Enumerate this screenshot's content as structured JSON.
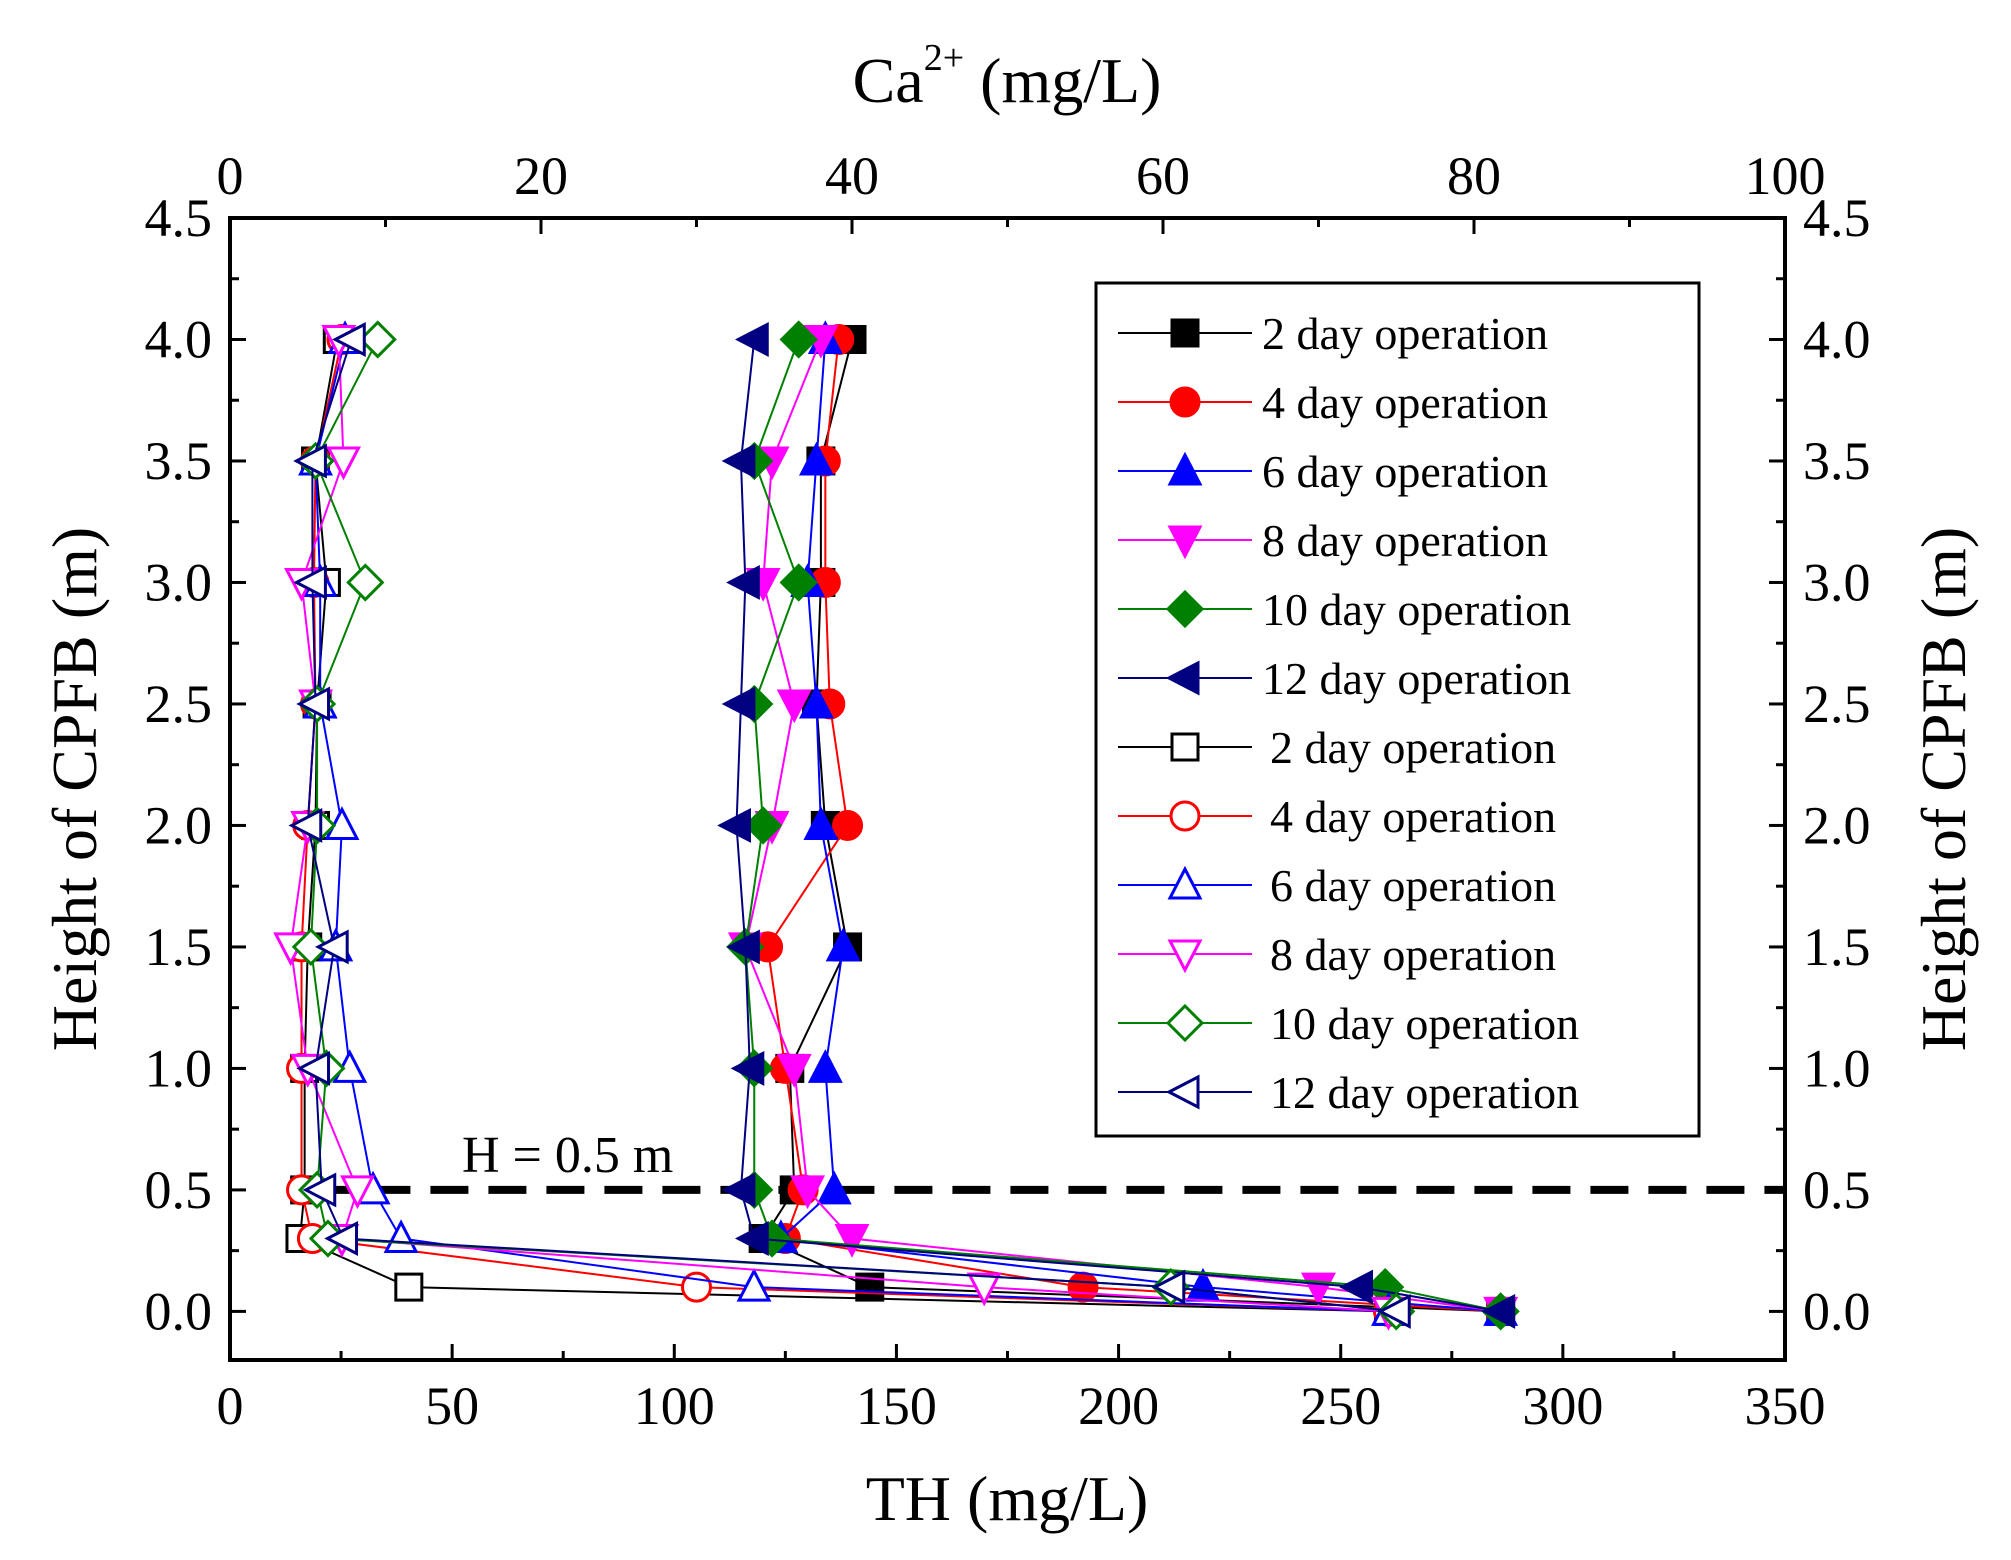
{
  "chart_data": {
    "type": "line",
    "title": "",
    "xlabel": "TH (mg/L)",
    "x2label_base": "Ca",
    "x2label_sup": "2+",
    "x2label_unit": "(mg/L)",
    "ylabel": "Height of CPFB (m)",
    "y2label": "Height of CPFB (m)",
    "xlim": [
      0,
      350
    ],
    "x2lim": [
      0,
      100
    ],
    "ylim": [
      -0.2,
      4.5
    ],
    "xticks": [
      "0",
      "50",
      "100",
      "150",
      "200",
      "250",
      "300",
      "350"
    ],
    "x2ticks": [
      "0",
      "20",
      "40",
      "60",
      "80",
      "100"
    ],
    "yticks": [
      "0.0",
      "0.5",
      "1.0",
      "1.5",
      "2.0",
      "2.5",
      "3.0",
      "3.5",
      "4.0",
      "4.5"
    ],
    "grid": false,
    "legend_position": "top-right",
    "annotation": {
      "label": "H = 0.5 m",
      "y": 0.5,
      "style": "dashed"
    },
    "heights": [
      0.0,
      0.1,
      0.3,
      0.5,
      1.0,
      1.5,
      2.0,
      2.5,
      3.0,
      3.5,
      4.0
    ],
    "series": [
      {
        "name": "2 day operation",
        "axis": "TH",
        "color": "#000000",
        "marker": "square",
        "filled": true,
        "values": [
          286,
          144,
          120,
          127,
          126,
          139,
          134,
          132,
          133,
          133,
          140
        ]
      },
      {
        "name": "4 day operation",
        "axis": "TH",
        "color": "#ff0000",
        "marker": "circle",
        "filled": true,
        "values": [
          286,
          192,
          125,
          129,
          125,
          121,
          139,
          135,
          134,
          134,
          137
        ]
      },
      {
        "name": "6 day operation",
        "axis": "TH",
        "color": "#0000ff",
        "marker": "triangle-up",
        "filled": true,
        "values": [
          286,
          219,
          124,
          136,
          134,
          138,
          133,
          132,
          130,
          132,
          134
        ]
      },
      {
        "name": "8 day operation",
        "axis": "TH",
        "color": "#ff00ff",
        "marker": "triangle-down",
        "filled": true,
        "values": [
          286,
          245,
          140,
          130,
          127,
          116,
          122,
          127,
          120,
          122,
          133
        ]
      },
      {
        "name": "10 day operation",
        "axis": "TH",
        "color": "#008000",
        "marker": "diamond",
        "filled": true,
        "values": [
          286,
          260,
          122,
          118,
          118,
          116,
          120,
          118,
          128,
          118,
          128
        ]
      },
      {
        "name": "12 day operation",
        "axis": "TH",
        "color": "#000080",
        "marker": "triangle-left",
        "filled": true,
        "values": [
          286,
          254,
          118,
          115,
          117,
          116,
          114,
          115,
          116,
          115,
          118
        ]
      },
      {
        "name": "2 day operation",
        "axis": "Ca",
        "color": "#000000",
        "marker": "square",
        "filled": false,
        "values": [
          74.5,
          11.5,
          4.5,
          4.8,
          4.8,
          5.0,
          5.5,
          5.6,
          6.2,
          5.5,
          6.9
        ]
      },
      {
        "name": "4 day operation",
        "axis": "Ca",
        "color": "#ff0000",
        "marker": "circle",
        "filled": false,
        "values": [
          74.5,
          30.0,
          5.3,
          4.6,
          4.6,
          4.6,
          5.0,
          5.5,
          5.4,
          5.5,
          7.2
        ]
      },
      {
        "name": "6 day operation",
        "axis": "Ca",
        "color": "#0000ff",
        "marker": "triangle-up",
        "filled": false,
        "values": [
          74.5,
          33.7,
          11.0,
          9.2,
          7.7,
          6.8,
          7.2,
          5.8,
          5.8,
          5.5,
          7.4
        ]
      },
      {
        "name": "8 day operation",
        "axis": "Ca",
        "color": "#ff00ff",
        "marker": "triangle-down",
        "filled": false,
        "values": [
          74.5,
          48.5,
          7.2,
          8.2,
          5.0,
          3.9,
          5.0,
          5.5,
          4.6,
          7.3,
          7.0
        ]
      },
      {
        "name": "10 day operation",
        "axis": "Ca",
        "color": "#008000",
        "marker": "diamond",
        "filled": false,
        "values": [
          75.0,
          60.5,
          6.3,
          5.6,
          6.2,
          5.2,
          5.6,
          5.6,
          8.7,
          5.5,
          9.5
        ]
      },
      {
        "name": "12 day operation",
        "axis": "Ca",
        "color": "#000080",
        "marker": "triangle-left",
        "filled": false,
        "values": [
          75.0,
          60.5,
          7.3,
          5.9,
          5.5,
          6.7,
          5.0,
          5.5,
          5.3,
          5.3,
          7.8
        ]
      }
    ]
  }
}
